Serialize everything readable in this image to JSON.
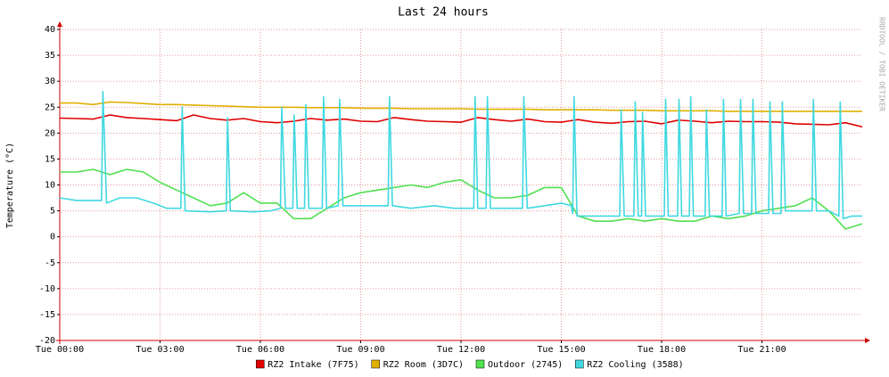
{
  "chart_data": {
    "type": "line",
    "title": "Last 24 hours",
    "y_label": "Temperature (°C)",
    "side_text": "RRDTOOL / TOBI OETIKER",
    "xlim": [
      0,
      24
    ],
    "ylim": [
      -20,
      40
    ],
    "xticks": [
      {
        "value": 0,
        "label": "Tue 00:00"
      },
      {
        "value": 3,
        "label": "Tue 03:00"
      },
      {
        "value": 6,
        "label": "Tue 06:00"
      },
      {
        "value": 9,
        "label": "Tue 09:00"
      },
      {
        "value": 12,
        "label": "Tue 12:00"
      },
      {
        "value": 15,
        "label": "Tue 15:00"
      },
      {
        "value": 18,
        "label": "Tue 18:00"
      },
      {
        "value": 21,
        "label": "Tue 21:00"
      }
    ],
    "yticks": [
      -20,
      -15,
      -10,
      -5,
      0,
      5,
      10,
      15,
      20,
      25,
      30,
      35,
      40
    ],
    "grid": true,
    "x": [
      0,
      0.5,
      1,
      1.5,
      2,
      2.5,
      3,
      3.5,
      4,
      4.5,
      5,
      5.5,
      6,
      6.5,
      7,
      7.5,
      8,
      8.5,
      9,
      9.5,
      10,
      10.5,
      11,
      11.5,
      12,
      12.5,
      13,
      13.5,
      14,
      14.5,
      15,
      15.5,
      16,
      16.5,
      17,
      17.5,
      18,
      18.5,
      19,
      19.5,
      20,
      20.5,
      21,
      21.5,
      22,
      22.5,
      23,
      23.5,
      24
    ],
    "series": [
      {
        "name": "RZ2 Intake (7F75)",
        "color": "#e00000",
        "values": [
          22.9,
          22.8,
          22.7,
          23.5,
          23,
          22.8,
          22.6,
          22.4,
          23.5,
          22.8,
          22.5,
          22.8,
          22.2,
          22,
          22.3,
          22.8,
          22.5,
          22.7,
          22.3,
          22.2,
          23,
          22.6,
          22.3,
          22.2,
          22.1,
          23,
          22.6,
          22.3,
          22.7,
          22.2,
          22.1,
          22.6,
          22.1,
          21.9,
          22.2,
          22.3,
          21.8,
          22.5,
          22.3,
          22,
          22.3,
          22.2,
          22.2,
          22.1,
          21.8,
          21.7,
          21.6,
          22,
          21.2
        ]
      },
      {
        "name": "RZ2 Room (3D7C)",
        "color": "#e0b000",
        "values": [
          25.8,
          25.8,
          25.5,
          26,
          25.9,
          25.7,
          25.5,
          25.5,
          25.4,
          25.3,
          25.2,
          25.1,
          25,
          25,
          25,
          24.9,
          24.9,
          24.9,
          24.8,
          24.8,
          24.8,
          24.7,
          24.7,
          24.7,
          24.7,
          24.6,
          24.6,
          24.6,
          24.6,
          24.5,
          24.5,
          24.5,
          24.5,
          24.4,
          24.4,
          24.4,
          24.3,
          24.3,
          24.3,
          24.3,
          24.2,
          24.2,
          24.2,
          24.2,
          24.2,
          24.2,
          24.2,
          24.2,
          24.2
        ]
      },
      {
        "name": "Outdoor (2745)",
        "color": "#50e050",
        "values": [
          12.5,
          12.5,
          13,
          12,
          13,
          12.5,
          10.5,
          9,
          7.5,
          6,
          6.5,
          8.5,
          6.5,
          6.5,
          3.5,
          3.5,
          5.5,
          7.5,
          8.5,
          9,
          9.5,
          10,
          9.5,
          10.5,
          11,
          9,
          7.5,
          7.5,
          8,
          9.5,
          9.5,
          4,
          3,
          3,
          3.5,
          3,
          3.5,
          3,
          3,
          4,
          3.5,
          4,
          5,
          5.5,
          6,
          7.5,
          5,
          1.5,
          2.5
        ]
      },
      {
        "name": "RZ2 Cooling (3588)",
        "color": "#40d8e0",
        "x": [
          0,
          0.5,
          1,
          1.25,
          1.29,
          1.4,
          1.8,
          2.3,
          2.8,
          3.2,
          3.62,
          3.66,
          3.75,
          4.5,
          4.98,
          5.02,
          5.1,
          5.8,
          6.3,
          6.6,
          6.64,
          6.75,
          6.97,
          7.01,
          7.1,
          7.32,
          7.36,
          7.45,
          7.85,
          7.89,
          7.98,
          8.33,
          8.37,
          8.47,
          9.2,
          9.82,
          9.86,
          9.95,
          10.5,
          11.2,
          11.8,
          12.38,
          12.42,
          12.5,
          12.75,
          12.79,
          12.88,
          13.3,
          13.84,
          13.88,
          13.98,
          14.5,
          15,
          15.3,
          15.34,
          15.38,
          15.47,
          16.2,
          16.75,
          16.79,
          16.88,
          17.17,
          17.21,
          17.3,
          17.4,
          17.43,
          17.52,
          18.08,
          18.12,
          18.2,
          18.48,
          18.52,
          18.6,
          18.83,
          18.87,
          18.95,
          19.3,
          19.34,
          19.43,
          19.81,
          19.85,
          19.93,
          20.32,
          20.36,
          20.45,
          20.69,
          20.73,
          20.82,
          21.2,
          21.24,
          21.33,
          21.57,
          21.61,
          21.7,
          22.1,
          22.5,
          22.54,
          22.63,
          23,
          23.3,
          23.34,
          23.43,
          23.7,
          24
        ],
        "values": [
          7.5,
          7,
          7,
          7,
          28,
          6.5,
          7.5,
          7.5,
          6.5,
          5.5,
          5.5,
          25,
          5,
          4.8,
          5,
          23,
          5,
          4.8,
          5,
          5.5,
          25,
          5.5,
          5.5,
          23.5,
          5.5,
          5.5,
          25.5,
          5.5,
          5.5,
          27,
          5.5,
          6,
          26.5,
          6,
          6,
          6,
          27,
          6,
          5.5,
          6,
          5.5,
          5.5,
          27,
          5.5,
          5.5,
          27,
          5.5,
          5.5,
          5.5,
          27,
          5.5,
          6,
          6.5,
          6,
          4.5,
          27,
          4,
          4,
          4,
          24.5,
          4,
          4,
          26,
          4,
          4,
          24,
          4,
          4,
          26.5,
          4,
          4,
          26.5,
          4,
          4,
          27,
          4,
          4,
          24.5,
          4,
          4,
          26.5,
          4,
          4.5,
          26.5,
          4.5,
          4.5,
          26.5,
          4.5,
          4.5,
          26,
          4.5,
          4.5,
          26,
          5,
          5,
          5,
          26.5,
          5,
          5,
          4,
          26,
          3.5,
          4,
          4
        ]
      }
    ]
  }
}
